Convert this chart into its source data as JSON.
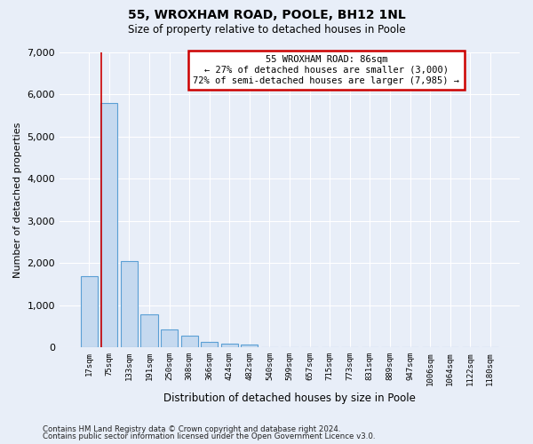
{
  "title": "55, WROXHAM ROAD, POOLE, BH12 1NL",
  "subtitle": "Size of property relative to detached houses in Poole",
  "xlabel": "Distribution of detached houses by size in Poole",
  "ylabel": "Number of detached properties",
  "bar_color": "#c5d9ef",
  "bar_edge_color": "#5a9fd4",
  "background_color": "#e8eef8",
  "grid_color": "#ffffff",
  "annotation_box_color": "#cc0000",
  "property_line_color": "#cc0000",
  "categories": [
    "17sqm",
    "75sqm",
    "133sqm",
    "191sqm",
    "250sqm",
    "308sqm",
    "366sqm",
    "424sqm",
    "482sqm",
    "540sqm",
    "599sqm",
    "657sqm",
    "715sqm",
    "773sqm",
    "831sqm",
    "889sqm",
    "947sqm",
    "1006sqm",
    "1064sqm",
    "1122sqm",
    "1180sqm"
  ],
  "values": [
    1700,
    5800,
    2050,
    780,
    430,
    270,
    120,
    80,
    60,
    10,
    0,
    0,
    0,
    0,
    0,
    0,
    0,
    0,
    0,
    0,
    0
  ],
  "ylim": [
    0,
    7000
  ],
  "yticks": [
    0,
    1000,
    2000,
    3000,
    4000,
    5000,
    6000,
    7000
  ],
  "property_label": "55 WROXHAM ROAD: 86sqm",
  "annotation_line1": "← 27% of detached houses are smaller (3,000)",
  "annotation_line2": "72% of semi-detached houses are larger (7,985) →",
  "property_bin_index": 1,
  "footnote1": "Contains HM Land Registry data © Crown copyright and database right 2024.",
  "footnote2": "Contains public sector information licensed under the Open Government Licence v3.0."
}
